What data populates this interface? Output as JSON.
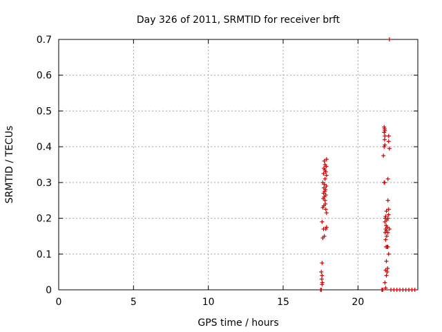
{
  "chart_data": {
    "type": "scatter",
    "title": "Day 326 of 2011, SRMTID for receiver brft",
    "xlabel": "GPS time / hours",
    "ylabel": "SRMTID / TECUs",
    "xlim": [
      0,
      24
    ],
    "ylim": [
      0,
      0.7
    ],
    "xticks": [
      0,
      5,
      10,
      15,
      20
    ],
    "yticks": [
      0,
      0.1,
      0.2,
      0.3,
      0.4,
      0.5,
      0.6,
      0.7
    ],
    "ytick_labels": [
      "0",
      "0.1",
      "0.2",
      "0.3",
      "0.4",
      "0.5",
      "0.6",
      "0.7"
    ],
    "grid": true,
    "legend": "none",
    "marker": "+",
    "color": "#cc0000",
    "series": [
      {
        "points": [
          [
            17.5,
            0.0
          ],
          [
            17.55,
            0.0
          ],
          [
            17.6,
            0.015
          ],
          [
            17.62,
            0.02
          ],
          [
            17.58,
            0.03
          ],
          [
            17.6,
            0.04
          ],
          [
            17.55,
            0.05
          ],
          [
            17.6,
            0.075
          ],
          [
            17.65,
            0.145
          ],
          [
            17.75,
            0.15
          ],
          [
            17.7,
            0.17
          ],
          [
            17.85,
            0.17
          ],
          [
            17.9,
            0.175
          ],
          [
            17.6,
            0.19
          ],
          [
            17.9,
            0.215
          ],
          [
            17.85,
            0.225
          ],
          [
            17.65,
            0.23
          ],
          [
            17.72,
            0.235
          ],
          [
            17.82,
            0.24
          ],
          [
            17.8,
            0.25
          ],
          [
            17.68,
            0.255
          ],
          [
            17.75,
            0.26
          ],
          [
            17.85,
            0.265
          ],
          [
            17.7,
            0.27
          ],
          [
            17.78,
            0.275
          ],
          [
            17.82,
            0.28
          ],
          [
            17.72,
            0.285
          ],
          [
            17.88,
            0.29
          ],
          [
            17.75,
            0.295
          ],
          [
            17.65,
            0.3
          ],
          [
            17.8,
            0.31
          ],
          [
            17.9,
            0.32
          ],
          [
            17.7,
            0.325
          ],
          [
            17.85,
            0.33
          ],
          [
            17.78,
            0.335
          ],
          [
            17.72,
            0.34
          ],
          [
            17.88,
            0.345
          ],
          [
            17.8,
            0.35
          ],
          [
            17.75,
            0.36
          ],
          [
            17.9,
            0.365
          ],
          [
            21.6,
            0.0
          ],
          [
            21.65,
            0.0
          ],
          [
            21.85,
            0.005
          ],
          [
            21.8,
            0.02
          ],
          [
            21.9,
            0.04
          ],
          [
            21.95,
            0.05
          ],
          [
            21.85,
            0.055
          ],
          [
            21.98,
            0.06
          ],
          [
            21.9,
            0.08
          ],
          [
            22.05,
            0.1
          ],
          [
            21.88,
            0.12
          ],
          [
            21.95,
            0.12
          ],
          [
            22.0,
            0.12
          ],
          [
            21.85,
            0.14
          ],
          [
            21.92,
            0.15
          ],
          [
            21.82,
            0.16
          ],
          [
            22.0,
            0.16
          ],
          [
            21.9,
            0.165
          ],
          [
            21.85,
            0.17
          ],
          [
            22.1,
            0.17
          ],
          [
            21.95,
            0.175
          ],
          [
            21.88,
            0.18
          ],
          [
            21.8,
            0.19
          ],
          [
            21.92,
            0.195
          ],
          [
            21.82,
            0.2
          ],
          [
            22.0,
            0.2
          ],
          [
            21.85,
            0.205
          ],
          [
            22.05,
            0.21
          ],
          [
            21.9,
            0.22
          ],
          [
            22.05,
            0.225
          ],
          [
            22.0,
            0.25
          ],
          [
            21.75,
            0.3
          ],
          [
            21.78,
            0.3
          ],
          [
            22.0,
            0.31
          ],
          [
            21.7,
            0.375
          ],
          [
            22.1,
            0.395
          ],
          [
            21.75,
            0.4
          ],
          [
            21.8,
            0.405
          ],
          [
            22.05,
            0.415
          ],
          [
            21.78,
            0.42
          ],
          [
            21.8,
            0.43
          ],
          [
            22.05,
            0.43
          ],
          [
            21.75,
            0.44
          ],
          [
            21.8,
            0.445
          ],
          [
            21.78,
            0.45
          ],
          [
            21.75,
            0.455
          ],
          [
            22.1,
            0.7
          ],
          [
            22.2,
            0.0
          ],
          [
            22.4,
            0.0
          ],
          [
            22.6,
            0.0
          ],
          [
            22.8,
            0.0
          ],
          [
            23.0,
            0.0
          ],
          [
            23.2,
            0.0
          ],
          [
            23.4,
            0.0
          ],
          [
            23.6,
            0.0
          ],
          [
            23.8,
            0.0
          ]
        ]
      }
    ]
  }
}
